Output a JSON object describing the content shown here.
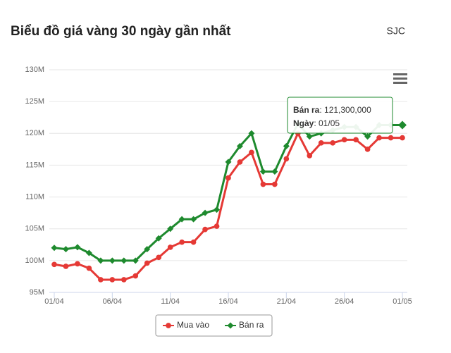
{
  "chart_data": {
    "type": "line",
    "title": "Biểu đồ giá vàng 30 ngày gần nhất",
    "subtitle": "SJC",
    "categories": [
      "01/04",
      null,
      null,
      null,
      null,
      "06/04",
      null,
      null,
      null,
      null,
      "11/04",
      null,
      null,
      null,
      null,
      "16/04",
      null,
      null,
      null,
      null,
      "21/04",
      null,
      null,
      null,
      null,
      "26/04",
      null,
      null,
      null,
      null,
      "01/05"
    ],
    "series": [
      {
        "name": "Mua vào",
        "color": "#e53935",
        "marker": "circle",
        "values": [
          99400000,
          99100000,
          99500000,
          98800000,
          97000000,
          97000000,
          97000000,
          97600000,
          99600000,
          100500000,
          102100000,
          102900000,
          102900000,
          104900000,
          105400000,
          113000000,
          115500000,
          117000000,
          112000000,
          112000000,
          116000000,
          120000000,
          116500000,
          118500000,
          118500000,
          119000000,
          119000000,
          117500000,
          119300000,
          119300000,
          119300000
        ]
      },
      {
        "name": "Bán ra",
        "color": "#1e8a2e",
        "marker": "diamond",
        "values": [
          102000000,
          101800000,
          102100000,
          101200000,
          100000000,
          100000000,
          100000000,
          100000000,
          101800000,
          103500000,
          105000000,
          106500000,
          106500000,
          107500000,
          108000000,
          115500000,
          118000000,
          120000000,
          114000000,
          114000000,
          118000000,
          121500000,
          119500000,
          120000000,
          120500000,
          121000000,
          121000000,
          119500000,
          121300000,
          121300000,
          121300000
        ]
      }
    ],
    "ylim": [
      95000000,
      130000000
    ],
    "yticks": [
      {
        "value": 95000000,
        "label": "95M"
      },
      {
        "value": 100000000,
        "label": "100M"
      },
      {
        "value": 105000000,
        "label": "105M"
      },
      {
        "value": 110000000,
        "label": "110M"
      },
      {
        "value": 115000000,
        "label": "115M"
      },
      {
        "value": 120000000,
        "label": "120M"
      },
      {
        "value": 125000000,
        "label": "125M"
      },
      {
        "value": 130000000,
        "label": "130M"
      }
    ],
    "grid": true,
    "legend": "bottom",
    "tooltip": {
      "series": 1,
      "index": 30,
      "lines": [
        {
          "label": "Bán ra",
          "text": ": 121,300,000"
        },
        {
          "label": "Ngày",
          "text": ": 01/05"
        }
      ]
    }
  }
}
